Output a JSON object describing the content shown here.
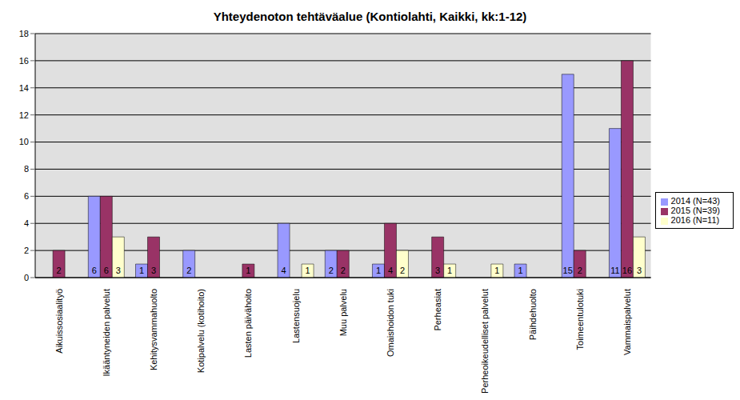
{
  "chart_data": {
    "type": "bar",
    "title": "Yhteydenoton tehtäväalue (Kontiolahti, Kaikki, kk:1-12)",
    "categories": [
      "Aikuissosiaalityö",
      "Ikääntyneiden palvelut",
      "Kehitysvammahuolto",
      "Kotipalvelu (kotihoito)",
      "Lasten päivähoito",
      "Lastensuojelu",
      "Muu palvelu",
      "Omaishoidon tuki",
      "Perheasiat",
      "Perheoikeudelliset palvelut",
      "Päihdehuolto",
      "Toimeentulotuki",
      "Vammaispalvelut"
    ],
    "series": [
      {
        "name": "2014 (N=43)",
        "color": "#9999ff",
        "values": [
          0,
          6,
          1,
          2,
          0,
          4,
          2,
          1,
          0,
          0,
          1,
          15,
          11
        ]
      },
      {
        "name": "2015 (N=39)",
        "color": "#993366",
        "values": [
          2,
          6,
          3,
          0,
          1,
          0,
          2,
          4,
          3,
          0,
          0,
          2,
          16
        ]
      },
      {
        "name": "2016 (N=11)",
        "color": "#ffffcc",
        "values": [
          0,
          3,
          0,
          0,
          0,
          1,
          0,
          2,
          1,
          1,
          0,
          0,
          3
        ]
      }
    ],
    "ylim": [
      0,
      18
    ],
    "yticks": [
      0,
      2,
      4,
      6,
      8,
      10,
      12,
      14,
      16,
      18
    ],
    "grid": true,
    "legend": "right",
    "data_labels": true
  }
}
